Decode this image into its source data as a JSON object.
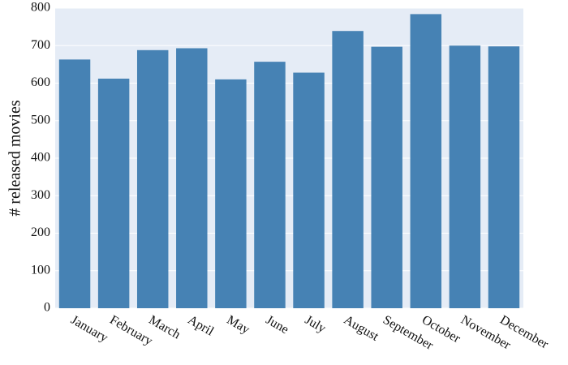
{
  "chart_data": {
    "type": "bar",
    "y_label": "# released movies",
    "categories": [
      "January",
      "February",
      "March",
      "April",
      "May",
      "June",
      "July",
      "August",
      "September",
      "October",
      "November",
      "December"
    ],
    "values": [
      663,
      612,
      688,
      693,
      610,
      657,
      628,
      739,
      697,
      784,
      700,
      698
    ],
    "color": "#4682b4",
    "background": "#e5ecf6",
    "ylim": [
      0,
      800
    ],
    "yticks": [
      0,
      100,
      200,
      300,
      400,
      500,
      600,
      700,
      800
    ],
    "grid": true
  }
}
